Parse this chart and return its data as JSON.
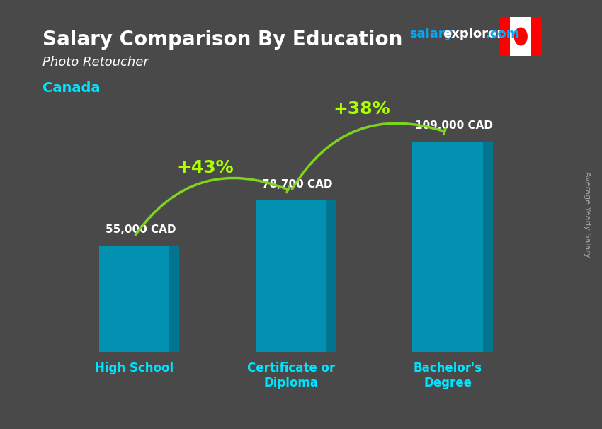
{
  "title": "Salary Comparison By Education",
  "subtitle": "Photo Retoucher",
  "country": "Canada",
  "watermark": "salaryexplorer.com",
  "ylabel_rotated": "Average Yearly Salary",
  "categories": [
    "High School",
    "Certificate or\nDiploma",
    "Bachelor's\nDegree"
  ],
  "values": [
    55000,
    78700,
    109000
  ],
  "value_labels": [
    "55,000 CAD",
    "78,700 CAD",
    "109,000 CAD"
  ],
  "pct_labels": [
    "+43%",
    "+38%"
  ],
  "bar_color_top": "#00bcd4",
  "bar_color_face": "#0099bb",
  "bar_color_side": "#007a99",
  "arrow_color": "#7ed321",
  "bg_color": "#2a2a2a",
  "title_color": "#ffffff",
  "subtitle_color": "#ffffff",
  "country_color": "#00e5ff",
  "watermark_salary_color": "#00aaff",
  "watermark_explorer_color": "#ffffff",
  "watermark_com_color": "#00aaff",
  "value_label_color": "#ffffff",
  "pct_color": "#aaff00",
  "xlabel_color": "#00e5ff",
  "ylabel_color": "#cccccc",
  "figsize": [
    8.5,
    6.06
  ],
  "dpi": 100
}
